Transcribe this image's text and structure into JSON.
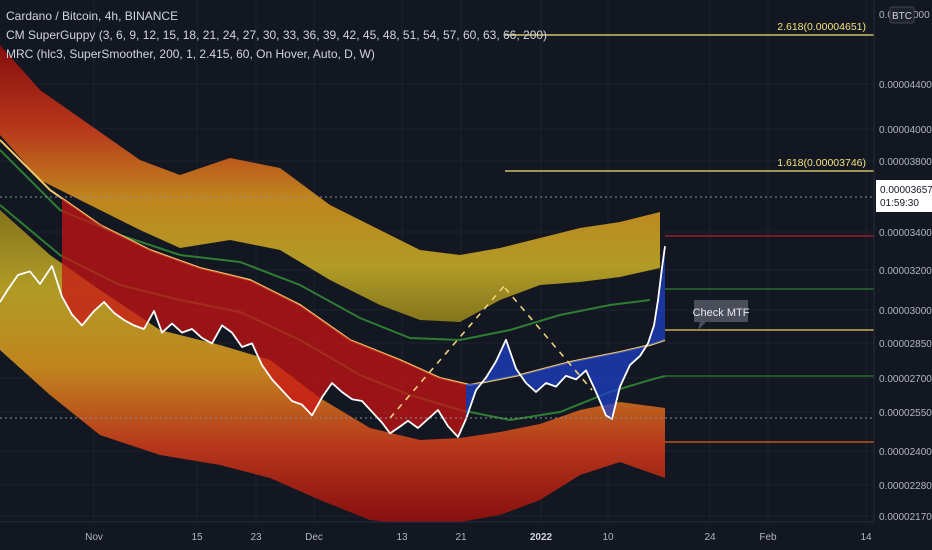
{
  "header": {
    "title": "Cardano / Bitcoin, 4h, BINANCE",
    "indicator1": "CM SuperGuppy (3, 6, 9, 12, 15, 18, 21, 24, 27, 30, 33, 36, 39, 42, 45, 48, 51, 54, 57, 60, 63, 66, 200)",
    "indicator2": "MRC (hlc3, SuperSmoother, 200, 1, 2.415, 60, On Hover, Auto, D, W)"
  },
  "currency": "BTC",
  "price_badge": {
    "value": "0.00003657",
    "countdown": "01:59:30"
  },
  "annotation": "Check MTF",
  "colors": {
    "background": "#131722",
    "price": "#ffffff",
    "fib": "#f5e27a",
    "guppy_bull": "#1e40c8",
    "guppy_bear": "#d01010",
    "mrc_upper_outer": "#b01010",
    "mrc_inner": "#c9a51c",
    "mean": "#f0c96a",
    "green_band": "#2e7d32"
  },
  "chart_data": {
    "type": "line",
    "y_axis_ticks": [
      "0.00004400",
      "0.00004000",
      "0.00003800",
      "0.00003400",
      "0.00003200",
      "0.00003000",
      "0.00002850",
      "0.00002700",
      "0.00002550",
      "0.00002400",
      "0.00002280",
      "0.00002170"
    ],
    "y_axis_top_partial": "0.0",
    "y_axis_top_partial_suffix": "000",
    "x_axis_ticks": [
      "Nov",
      "15",
      "23",
      "Dec",
      "13",
      "21",
      "2022",
      "10",
      "24",
      "Feb",
      "14"
    ],
    "ylim": [
      2.15e-05,
      5e-05
    ],
    "fib_levels": [
      {
        "label": "2.618(0.00004651)",
        "value": 4.651e-05
      },
      {
        "label": "1.618(0.00003746)",
        "value": 3.746e-05
      }
    ],
    "right_levels": [
      {
        "value": 3.4e-05,
        "color": "#b22222"
      },
      {
        "value": 3.1e-05,
        "color": "#2e7d32"
      },
      {
        "value": 2.9e-05,
        "color": "#f0c96a"
      },
      {
        "value": 2.72e-05,
        "color": "#2e7d32"
      },
      {
        "value": 2.43e-05,
        "color": "#e06020"
      }
    ],
    "series": [
      {
        "x": [
          0,
          8,
          18,
          30,
          40,
          52,
          62,
          72,
          82,
          94,
          104,
          114,
          124,
          134,
          144,
          154,
          162,
          172,
          182,
          192,
          202,
          212,
          222,
          232,
          242,
          252,
          262,
          272,
          282,
          292,
          302,
          312,
          322,
          332,
          342,
          352,
          362,
          372,
          382,
          390,
          398,
          408,
          418,
          428,
          438,
          448,
          458,
          466,
          476,
          486,
          496,
          506,
          516,
          526,
          536,
          546,
          556,
          566,
          576,
          586,
          596,
          606,
          612,
          620,
          630,
          640,
          648,
          654,
          658,
          662,
          665
        ],
        "values": [
          3.35e-05,
          3.42e-05,
          3.5e-05,
          3.52e-05,
          3.45e-05,
          3.55e-05,
          3.38e-05,
          3.28e-05,
          3.22e-05,
          3.3e-05,
          3.35e-05,
          3.29e-05,
          3.25e-05,
          3.22e-05,
          3.2e-05,
          3.3e-05,
          3.18e-05,
          3.23e-05,
          3.18e-05,
          3.2e-05,
          3.15e-05,
          3.12e-05,
          3.22e-05,
          3.18e-05,
          3.1e-05,
          3.12e-05,
          3e-05,
          2.92e-05,
          2.86e-05,
          2.8e-05,
          2.78e-05,
          2.72e-05,
          2.82e-05,
          2.9e-05,
          2.85e-05,
          2.81e-05,
          2.8e-05,
          2.74e-05,
          2.68e-05,
          2.62e-05,
          2.65e-05,
          2.69e-05,
          2.65e-05,
          2.7e-05,
          2.75e-05,
          2.66e-05,
          2.6e-05,
          2.7e-05,
          2.86e-05,
          2.93e-05,
          3.02e-05,
          3.14e-05,
          2.98e-05,
          2.9e-05,
          2.85e-05,
          2.9e-05,
          2.88e-05,
          2.94e-05,
          2.92e-05,
          2.97e-05,
          2.85e-05,
          2.72e-05,
          2.7e-05,
          2.88e-05,
          3e-05,
          3.05e-05,
          3.12e-05,
          3.22e-05,
          3.36e-05,
          3.54e-05,
          3.66e-05
        ]
      }
    ]
  }
}
